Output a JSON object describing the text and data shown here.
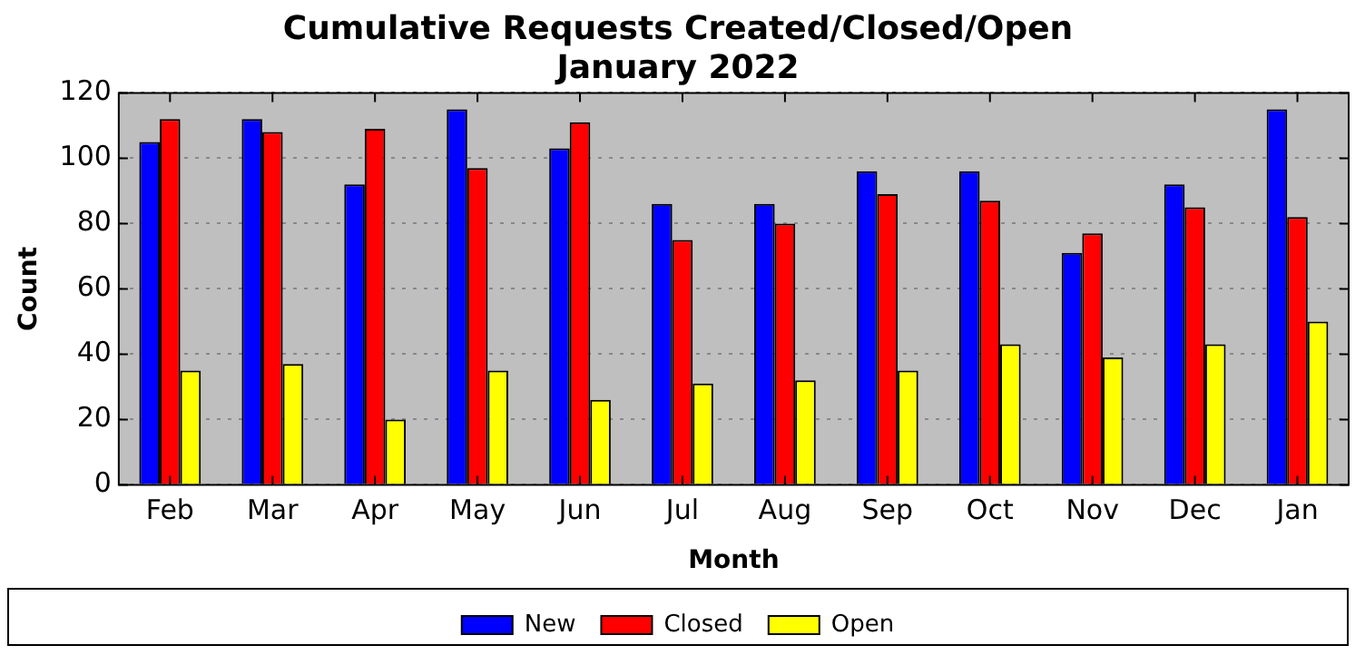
{
  "chart_data": {
    "type": "bar",
    "title": "Cumulative Requests Created/Closed/Open",
    "subtitle": "January 2022",
    "xlabel": "Month",
    "ylabel": "Count",
    "categories": [
      "Feb",
      "Mar",
      "Apr",
      "May",
      "Jun",
      "Jul",
      "Aug",
      "Sep",
      "Oct",
      "Nov",
      "Dec",
      "Jan"
    ],
    "series": [
      {
        "name": "New",
        "color": "#0000ff",
        "values": [
          105,
          112,
          92,
          115,
          103,
          86,
          86,
          96,
          96,
          71,
          92,
          115
        ]
      },
      {
        "name": "Closed",
        "color": "#ff0000",
        "values": [
          112,
          108,
          109,
          97,
          111,
          75,
          80,
          89,
          87,
          77,
          85,
          82
        ]
      },
      {
        "name": "Open",
        "color": "#ffff00",
        "values": [
          35,
          37,
          20,
          35,
          26,
          31,
          32,
          35,
          43,
          39,
          43,
          50
        ]
      }
    ],
    "ylim": [
      0,
      120
    ],
    "yticks": [
      0,
      20,
      40,
      60,
      80,
      100,
      120
    ],
    "grid": "y",
    "legend": "bottom"
  }
}
